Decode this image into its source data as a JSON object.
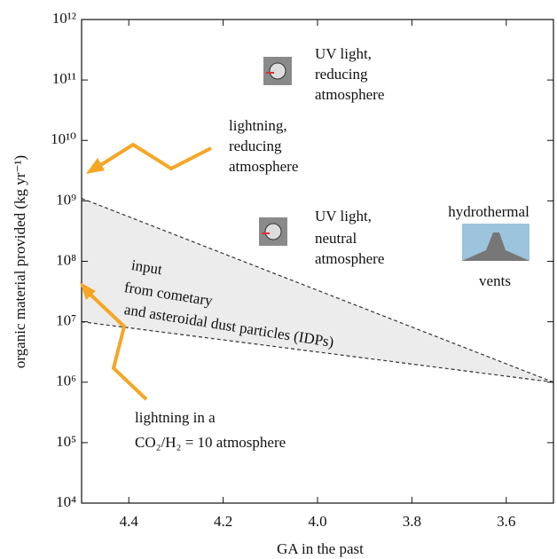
{
  "chart_data": {
    "type": "line",
    "x_label": "GA in the past",
    "y_label": "organic material provided (kg yr⁻¹)",
    "x": [
      4.5,
      3.5
    ],
    "series": [
      {
        "color": "#333333",
        "values": [
          1100000000,
          1000000
        ]
      },
      {
        "color": "#333333",
        "values": [
          10000000,
          1000000
        ]
      }
    ],
    "fill_between": true,
    "fill_color": "#ececec",
    "line_style": "dashed",
    "y_log": true,
    "xlim": [
      4.5,
      3.5
    ],
    "ylim": [
      10000,
      1000000000000
    ],
    "xticks": [
      4.4,
      4.2,
      {
        "value": 4.0,
        "label": "4.0"
      },
      3.8,
      3.6
    ],
    "yticks": [
      {
        "value": 10000,
        "label": "10⁴"
      },
      {
        "value": 100000,
        "label": "10⁵"
      },
      {
        "value": 1000000,
        "label": "10⁶"
      },
      {
        "value": 10000000,
        "label": "10⁷"
      },
      {
        "value": 100000000,
        "label": "10⁸"
      },
      {
        "value": 1000000000,
        "label": "10⁹"
      },
      {
        "value": 10000000000,
        "label": "10¹⁰"
      },
      {
        "value": 100000000000,
        "label": "10¹¹"
      },
      {
        "value": 1000000000000,
        "label": "10¹²"
      }
    ],
    "annotations": [
      [
        "UV light,",
        "reducing",
        "atmosphere"
      ],
      [
        "lightning,",
        "reducing",
        "atmosphere"
      ],
      [
        "UV light,",
        "neutral",
        "atmosphere"
      ],
      [
        "hydrothermal",
        "vents"
      ],
      [
        "input",
        "from cometary",
        "and asteroidal dust particles (IDPs)"
      ],
      [
        "lightning in a",
        "CO₂/H₂ = 10 atmosphere"
      ]
    ]
  }
}
